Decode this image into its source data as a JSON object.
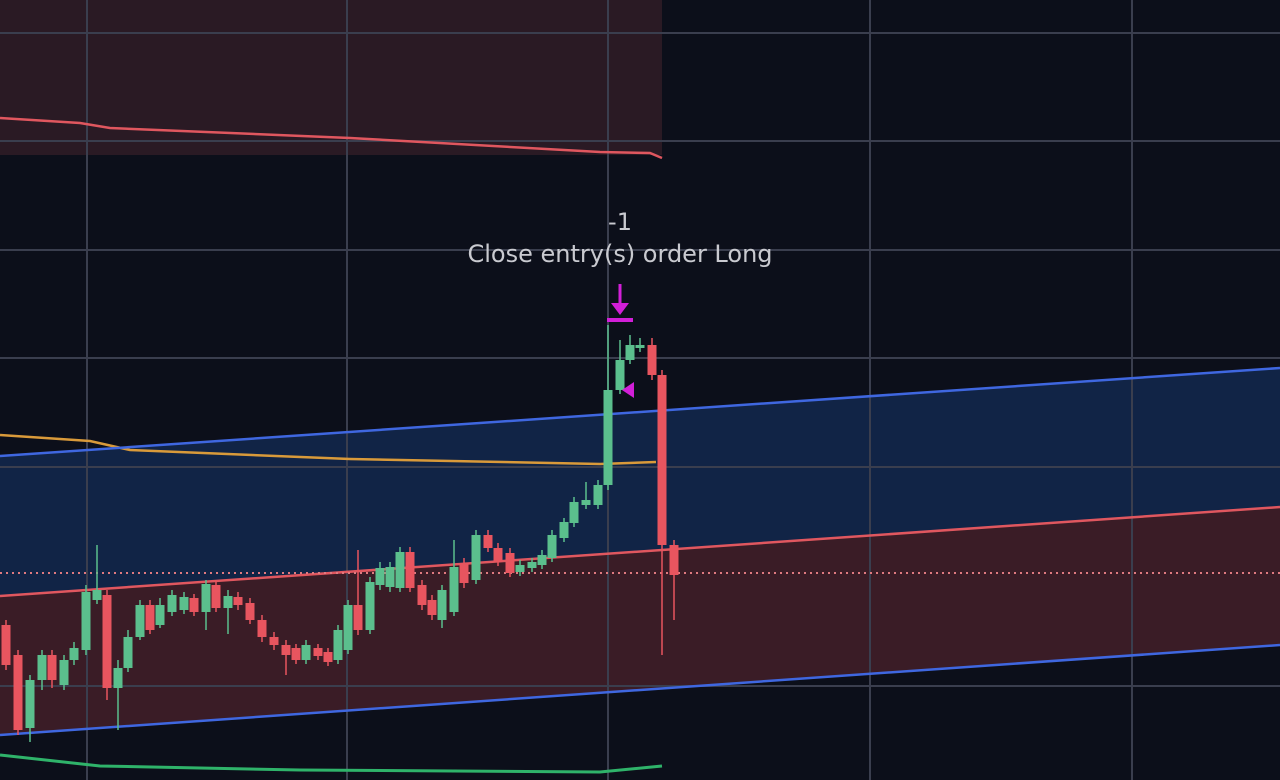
{
  "annotation": {
    "quantity": "-1",
    "text": "Close entry(s) order Long"
  }
}
